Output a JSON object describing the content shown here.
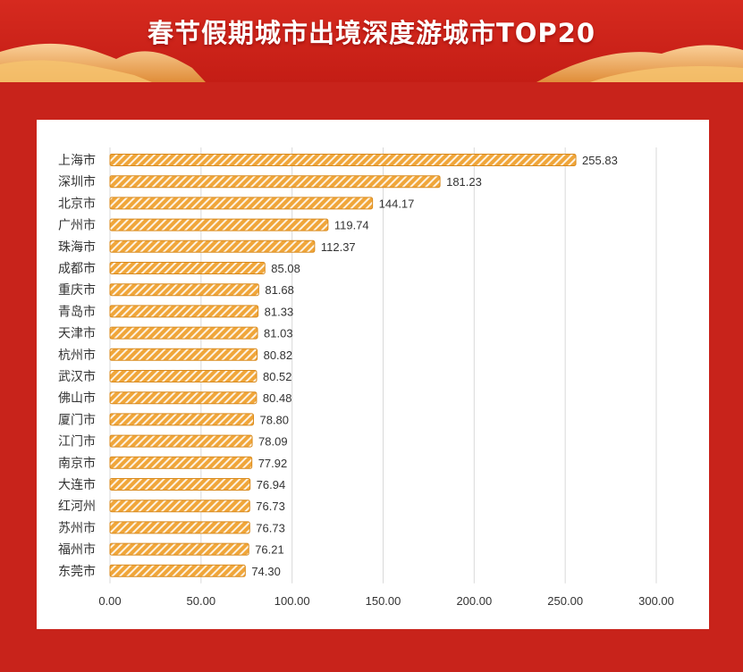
{
  "header": {
    "title": "春节假期城市出境深度游城市TOP20"
  },
  "colors": {
    "background": "#c8231b",
    "bar_fill": "#f0a63a",
    "bar_stripe": "#ffffff",
    "bar_stroke": "#d98a1c",
    "label": "#333333",
    "grid": "#d9d9d9"
  },
  "chart_data": {
    "type": "bar",
    "orientation": "horizontal",
    "categories": [
      "上海市",
      "深圳市",
      "北京市",
      "广州市",
      "珠海市",
      "成都市",
      "重庆市",
      "青岛市",
      "天津市",
      "杭州市",
      "武汉市",
      "佛山市",
      "厦门市",
      "江门市",
      "南京市",
      "大连市",
      "红河州",
      "苏州市",
      "福州市",
      "东莞市"
    ],
    "values": [
      255.83,
      181.23,
      144.17,
      119.74,
      112.37,
      85.08,
      81.68,
      81.33,
      81.03,
      80.82,
      80.52,
      80.48,
      78.8,
      78.09,
      77.92,
      76.94,
      76.73,
      76.73,
      76.21,
      74.3
    ],
    "value_labels": [
      "255.83",
      "181.23",
      "144.17",
      "119.74",
      "112.37",
      "85.08",
      "81.68",
      "81.33",
      "81.03",
      "80.82",
      "80.52",
      "80.48",
      "78.80",
      "78.09",
      "77.92",
      "76.94",
      "76.73",
      "76.73",
      "76.21",
      "74.30"
    ],
    "xticks": [
      0,
      50,
      100,
      150,
      200,
      250,
      300
    ],
    "xtick_labels": [
      "0.00",
      "50.00",
      "100.00",
      "150.00",
      "200.00",
      "250.00",
      "300.00"
    ],
    "xlim": [
      0,
      300
    ],
    "grid": "vertical",
    "title": "春节假期城市出境深度游城市TOP20",
    "xlabel": "",
    "ylabel": ""
  }
}
